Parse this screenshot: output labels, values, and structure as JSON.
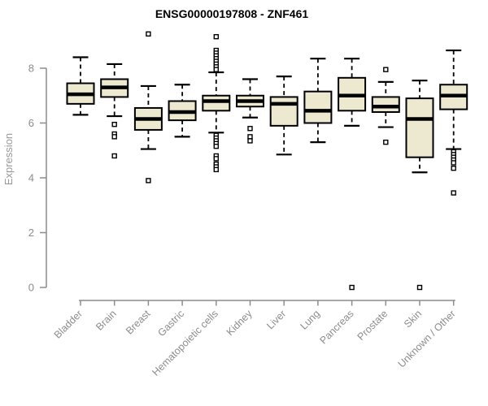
{
  "chart_data": {
    "type": "boxplot",
    "title": "ENSG00000197808 - ZNF461",
    "xlabel": "",
    "ylabel": "Expression",
    "ylim": [
      0,
      9.3
    ],
    "yticks": [
      0,
      2,
      4,
      6,
      8
    ],
    "grid": false,
    "legend": false,
    "categories": [
      "Bladder",
      "Brain",
      "Breast",
      "Gastric",
      "Hematopoietic cells",
      "Kidney",
      "Liver",
      "Lung",
      "Pancreas",
      "Prostate",
      "Skin",
      "Unknown / Other"
    ],
    "boxes": [
      {
        "category": "Bladder",
        "whisker_low": 6.3,
        "q1": 6.7,
        "median": 7.05,
        "q3": 7.45,
        "whisker_high": 8.4,
        "outliers": []
      },
      {
        "category": "Brain",
        "whisker_low": 6.25,
        "q1": 6.95,
        "median": 7.3,
        "q3": 7.6,
        "whisker_high": 8.15,
        "outliers": [
          5.95,
          5.6,
          5.5,
          4.8
        ]
      },
      {
        "category": "Breast",
        "whisker_low": 5.05,
        "q1": 5.75,
        "median": 6.15,
        "q3": 6.55,
        "whisker_high": 7.35,
        "outliers": [
          9.25,
          3.9
        ]
      },
      {
        "category": "Gastric",
        "whisker_low": 5.5,
        "q1": 6.1,
        "median": 6.4,
        "q3": 6.8,
        "whisker_high": 7.4,
        "outliers": []
      },
      {
        "category": "Hematopoietic cells",
        "whisker_low": 5.65,
        "q1": 6.45,
        "median": 6.8,
        "q3": 7.0,
        "whisker_high": 7.85,
        "outliers": [
          9.15,
          8.65,
          8.55,
          8.45,
          8.35,
          8.25,
          8.15,
          8.05,
          7.95,
          5.55,
          5.45,
          5.35,
          5.25,
          5.15,
          4.8,
          4.7,
          4.5,
          4.4,
          4.3
        ]
      },
      {
        "category": "Kidney",
        "whisker_low": 6.2,
        "q1": 6.6,
        "median": 6.8,
        "q3": 7.0,
        "whisker_high": 7.6,
        "outliers": [
          5.8,
          5.5,
          5.35
        ]
      },
      {
        "category": "Liver",
        "whisker_low": 4.85,
        "q1": 5.9,
        "median": 6.7,
        "q3": 6.95,
        "whisker_high": 7.7,
        "outliers": []
      },
      {
        "category": "Lung",
        "whisker_low": 5.3,
        "q1": 6.0,
        "median": 6.45,
        "q3": 7.15,
        "whisker_high": 8.35,
        "outliers": []
      },
      {
        "category": "Pancreas",
        "whisker_low": 5.9,
        "q1": 6.45,
        "median": 7.0,
        "q3": 7.65,
        "whisker_high": 8.35,
        "outliers": [
          0
        ]
      },
      {
        "category": "Prostate",
        "whisker_low": 5.85,
        "q1": 6.4,
        "median": 6.6,
        "q3": 6.95,
        "whisker_high": 7.5,
        "outliers": [
          7.95,
          5.3
        ]
      },
      {
        "category": "Skin",
        "whisker_low": 4.2,
        "q1": 4.75,
        "median": 6.15,
        "q3": 6.9,
        "whisker_high": 7.55,
        "outliers": [
          0
        ]
      },
      {
        "category": "Unknown / Other",
        "whisker_low": 5.05,
        "q1": 6.5,
        "median": 7.0,
        "q3": 7.4,
        "whisker_high": 8.65,
        "outliers": [
          4.95,
          4.85,
          4.75,
          4.65,
          4.55,
          4.35,
          3.45
        ]
      }
    ],
    "style": {
      "box_fill": "#ede8d0",
      "box_stroke": "#000000",
      "median_color": "#000000",
      "whisker_color": "#000000",
      "outlier_stroke": "#000000",
      "outlier_fill": "#ffffff",
      "axis_color": "#8c8c8c",
      "tick_label_color": "#8c8c8c",
      "axis_title_color": "#999999",
      "title_color": "#000000",
      "background": "#ffffff"
    }
  }
}
